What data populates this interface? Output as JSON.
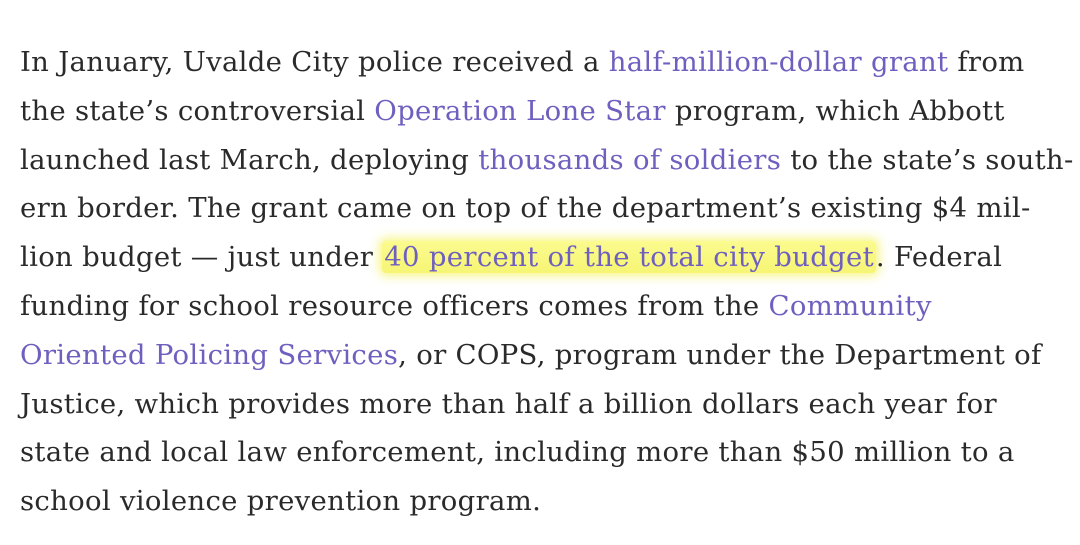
{
  "article": {
    "lines": [
      [
        {
          "text": "In January, Uvalde City police received a "
        },
        {
          "text": "half-million-dollar grant",
          "link": true
        },
        {
          "text": " from"
        }
      ],
      [
        {
          "text": "the state’s controversial "
        },
        {
          "text": "Operation Lone Star",
          "link": true
        },
        {
          "text": " program, which Abbott"
        }
      ],
      [
        {
          "text": "launched last March, deploying "
        },
        {
          "text": "thousands of soldiers",
          "link": true
        },
        {
          "text": " to the state’s south-"
        }
      ],
      [
        {
          "text": "ern border. The grant came on top of the department’s existing $4 mil-"
        }
      ],
      [
        {
          "text": "lion budget — just under "
        },
        {
          "text": "40 percent of the total city budget",
          "link": true,
          "highlight": true
        },
        {
          "text": ". Federal"
        }
      ],
      [
        {
          "text": "funding for school resource officers comes from the "
        },
        {
          "text": "Community",
          "link": true
        }
      ],
      [
        {
          "text": "Oriented Policing Services",
          "link": true
        },
        {
          "text": ", or COPS, program under the Department of"
        }
      ],
      [
        {
          "text": "Justice, which provides more than half a billion dollars each year for"
        }
      ],
      [
        {
          "text": "state and local law enforcement, including more than $50 million to a"
        }
      ],
      [
        {
          "text": "school violence prevention program."
        }
      ]
    ]
  },
  "colors": {
    "text": "#2a2a2a",
    "link": "#6f5fbf",
    "highlight": "#f6f574"
  }
}
